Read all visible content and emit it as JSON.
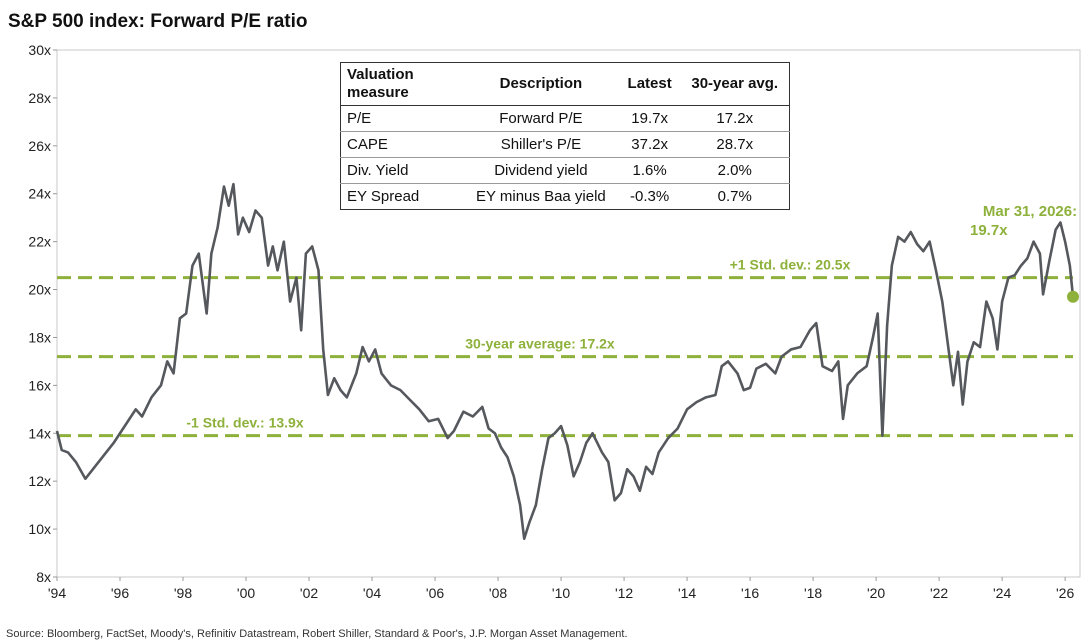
{
  "chart_data": {
    "type": "line",
    "title": "S&P 500 index: Forward P/E ratio",
    "source": "Source: Bloomberg, FactSet, Moody's, Refinitiv Datastream, Robert Shiller, Standard & Poor's, J.P. Morgan Asset Management.",
    "xlim": [
      1994,
      2026.25
    ],
    "ylim": [
      8,
      30
    ],
    "xticks": [
      {
        "value": 1994,
        "label": "'94"
      },
      {
        "value": 1996,
        "label": "'96"
      },
      {
        "value": 1998,
        "label": "'98"
      },
      {
        "value": 2000,
        "label": "'00"
      },
      {
        "value": 2002,
        "label": "'02"
      },
      {
        "value": 2004,
        "label": "'04"
      },
      {
        "value": 2006,
        "label": "'06"
      },
      {
        "value": 2008,
        "label": "'08"
      },
      {
        "value": 2010,
        "label": "'10"
      },
      {
        "value": 2012,
        "label": "'12"
      },
      {
        "value": 2014,
        "label": "'14"
      },
      {
        "value": 2016,
        "label": "'16"
      },
      {
        "value": 2018,
        "label": "'18"
      },
      {
        "value": 2020,
        "label": "'20"
      },
      {
        "value": 2022,
        "label": "'22"
      },
      {
        "value": 2024,
        "label": "'24"
      },
      {
        "value": 2026,
        "label": "'26"
      }
    ],
    "yticks": [
      {
        "value": 8,
        "label": "8x"
      },
      {
        "value": 10,
        "label": "10x"
      },
      {
        "value": 12,
        "label": "12x"
      },
      {
        "value": 14,
        "label": "14x"
      },
      {
        "value": 16,
        "label": "16x"
      },
      {
        "value": 18,
        "label": "18x"
      },
      {
        "value": 20,
        "label": "20x"
      },
      {
        "value": 22,
        "label": "22x"
      },
      {
        "value": 24,
        "label": "24x"
      },
      {
        "value": 26,
        "label": "26x"
      },
      {
        "value": 28,
        "label": "28x"
      },
      {
        "value": 30,
        "label": "30x"
      }
    ],
    "reference_lines": [
      {
        "value": 20.5,
        "label": "+1 Std. dev.: 20.5x",
        "color": "#8db13b"
      },
      {
        "value": 17.2,
        "label": "30-year average: 17.2x",
        "color": "#8db13b"
      },
      {
        "value": 13.9,
        "label": "-1 Std. dev.: 13.9x",
        "color": "#8db13b"
      }
    ],
    "annotation": {
      "lines": [
        "Mar 31, 2026:",
        "19.7x"
      ],
      "color": "#8db13b"
    },
    "series": [
      {
        "color": "#55585c",
        "x": [
          1994.0,
          1994.15,
          1994.35,
          1994.6,
          1994.9,
          1995.2,
          1995.5,
          1995.8,
          1996.0,
          1996.3,
          1996.5,
          1996.7,
          1997.0,
          1997.3,
          1997.5,
          1997.7,
          1997.9,
          1998.1,
          1998.3,
          1998.5,
          1998.6,
          1998.75,
          1998.9,
          1999.1,
          1999.3,
          1999.45,
          1999.6,
          1999.75,
          1999.9,
          2000.1,
          2000.3,
          2000.5,
          2000.7,
          2000.85,
          2001.0,
          2001.2,
          2001.4,
          2001.6,
          2001.75,
          2001.9,
          2002.1,
          2002.3,
          2002.45,
          2002.6,
          2002.8,
          2003.0,
          2003.2,
          2003.5,
          2003.7,
          2003.9,
          2004.1,
          2004.3,
          2004.6,
          2004.9,
          2005.2,
          2005.5,
          2005.8,
          2006.1,
          2006.4,
          2006.6,
          2006.9,
          2007.2,
          2007.5,
          2007.7,
          2007.9,
          2008.1,
          2008.3,
          2008.5,
          2008.7,
          2008.83,
          2009.0,
          2009.2,
          2009.4,
          2009.6,
          2009.8,
          2010.0,
          2010.2,
          2010.4,
          2010.6,
          2010.8,
          2011.0,
          2011.3,
          2011.5,
          2011.7,
          2011.9,
          2012.1,
          2012.3,
          2012.5,
          2012.7,
          2012.9,
          2013.1,
          2013.4,
          2013.7,
          2014.0,
          2014.3,
          2014.6,
          2014.9,
          2015.1,
          2015.3,
          2015.6,
          2015.8,
          2016.0,
          2016.2,
          2016.5,
          2016.8,
          2017.0,
          2017.3,
          2017.6,
          2017.9,
          2018.1,
          2018.3,
          2018.6,
          2018.8,
          2018.95,
          2019.1,
          2019.4,
          2019.7,
          2019.9,
          2020.05,
          2020.2,
          2020.35,
          2020.5,
          2020.7,
          2020.9,
          2021.1,
          2021.3,
          2021.5,
          2021.7,
          2021.9,
          2022.1,
          2022.3,
          2022.45,
          2022.6,
          2022.75,
          2022.9,
          2023.1,
          2023.3,
          2023.5,
          2023.7,
          2023.85,
          2024.0,
          2024.2,
          2024.4,
          2024.6,
          2024.8,
          2025.0,
          2025.2,
          2025.3,
          2025.5,
          2025.7,
          2025.85,
          2026.0,
          2026.15,
          2026.25
        ],
        "values": [
          14.1,
          13.3,
          13.2,
          12.8,
          12.1,
          12.6,
          13.1,
          13.6,
          14.0,
          14.6,
          15.0,
          14.7,
          15.5,
          16.0,
          17.0,
          16.5,
          18.8,
          19.0,
          21.0,
          21.5,
          20.5,
          19.0,
          21.5,
          22.6,
          24.3,
          23.5,
          24.4,
          22.3,
          23.0,
          22.4,
          23.3,
          23.0,
          21.0,
          21.8,
          20.8,
          22.0,
          19.5,
          20.5,
          18.3,
          21.5,
          21.8,
          20.8,
          17.5,
          15.6,
          16.3,
          15.8,
          15.5,
          16.5,
          17.6,
          17.0,
          17.5,
          16.5,
          16.0,
          15.8,
          15.4,
          15.0,
          14.5,
          14.6,
          13.8,
          14.1,
          14.9,
          14.7,
          15.1,
          14.2,
          14.0,
          13.4,
          13.0,
          12.2,
          11.0,
          9.6,
          10.3,
          11.0,
          12.5,
          13.8,
          14.0,
          14.3,
          13.5,
          12.2,
          12.8,
          13.6,
          14.0,
          13.2,
          12.8,
          11.2,
          11.5,
          12.5,
          12.2,
          11.6,
          12.6,
          12.3,
          13.2,
          13.8,
          14.2,
          15.0,
          15.3,
          15.5,
          15.6,
          16.8,
          17.0,
          16.5,
          15.8,
          15.9,
          16.7,
          16.9,
          16.5,
          17.2,
          17.5,
          17.6,
          18.3,
          18.6,
          16.8,
          16.6,
          17.0,
          14.6,
          16.0,
          16.5,
          16.8,
          18.0,
          19.0,
          13.9,
          18.5,
          21.0,
          22.2,
          22.0,
          22.4,
          21.9,
          21.6,
          22.0,
          20.8,
          19.5,
          17.5,
          16.0,
          17.4,
          15.2,
          17.0,
          17.8,
          17.6,
          19.5,
          18.8,
          17.5,
          19.5,
          20.5,
          20.6,
          21.0,
          21.3,
          22.0,
          21.5,
          19.8,
          21.2,
          22.5,
          22.8,
          22.0,
          21.0,
          19.7
        ]
      }
    ]
  },
  "table": {
    "header": [
      "Valuation measure",
      "Description",
      "Latest",
      "30-year avg."
    ],
    "rows": [
      [
        "P/E",
        "Forward P/E",
        "19.7x",
        "17.2x"
      ],
      [
        "CAPE",
        "Shiller's P/E",
        "37.2x",
        "28.7x"
      ],
      [
        "Div. Yield",
        "Dividend yield",
        "1.6%",
        "2.0%"
      ],
      [
        "EY Spread",
        "EY minus Baa yield",
        "-0.3%",
        "0.7%"
      ]
    ]
  }
}
